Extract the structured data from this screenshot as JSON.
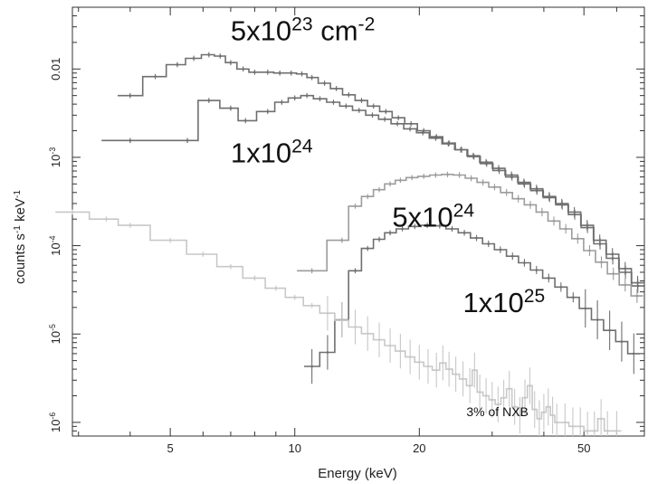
{
  "chart_data": {
    "type": "line",
    "xlabel": "Energy (keV)",
    "ylabel_parts": [
      "counts s",
      "-1",
      " keV",
      "-1"
    ],
    "xscale": "log",
    "yscale": "log",
    "xlim": [
      2.9,
      70
    ],
    "ylim": [
      7e-07,
      0.05
    ],
    "grid": false,
    "x_ticks": [
      5,
      10,
      20,
      50
    ],
    "x_tick_labels": [
      "5",
      "10",
      "20",
      "50"
    ],
    "y_ticks": [
      1e-06,
      1e-05,
      0.0001,
      0.001,
      0.01
    ],
    "y_tick_labels": [
      {
        "base": "10",
        "exp": "-6"
      },
      {
        "base": "10",
        "exp": "-5"
      },
      {
        "base": "10",
        "exp": "-4"
      },
      {
        "base": "10",
        "exp": "-3"
      },
      {
        "base": "0.01",
        "exp": ""
      }
    ],
    "annotations": [
      {
        "base": "5x10",
        "exp": "23",
        "rest": " cm",
        "rest_exp": "-2",
        "x": 7.0,
        "y": 0.0212
      },
      {
        "base": "1x10",
        "exp": "24",
        "rest": "",
        "rest_exp": "",
        "x": 7.0,
        "y": 0.00088
      },
      {
        "base": "5x10",
        "exp": "24",
        "rest": "",
        "rest_exp": "",
        "x": 17.2,
        "y": 0.000165
      },
      {
        "base": "1x10",
        "exp": "25",
        "rest": "",
        "rest_exp": "",
        "x": 25.5,
        "y": 1.78e-05
      },
      {
        "text": "3% of NXB",
        "x": 26.0,
        "y": 1.18e-06
      }
    ],
    "series": [
      {
        "color": "#6f6f6f",
        "x": [
          4.0,
          4.6,
          5.2,
          5.7,
          6.2,
          6.6,
          7.0,
          7.5,
          8.0,
          8.6,
          9.2,
          9.8,
          10.4,
          11.0,
          11.8,
          12.6,
          13.5,
          14.5,
          15.5,
          16.6,
          17.8,
          19.1,
          20.5,
          22.0,
          23.6,
          25.3,
          27.1,
          29.1,
          31.2,
          33.5,
          35.9,
          38.5,
          41.3,
          44.3,
          47.5,
          51.0,
          54.7,
          58.7,
          63.0,
          67.5
        ],
        "y": [
          0.005,
          0.0082,
          0.0112,
          0.0132,
          0.0145,
          0.014,
          0.0118,
          0.01,
          0.0092,
          0.0092,
          0.009,
          0.009,
          0.0088,
          0.008,
          0.0069,
          0.006,
          0.0051,
          0.0044,
          0.0038,
          0.0033,
          0.0028,
          0.0024,
          0.002,
          0.00171,
          0.00145,
          0.00122,
          0.00102,
          0.00085,
          0.00071,
          0.0006,
          0.0005,
          0.00042,
          0.00035,
          0.00029,
          0.000225,
          0.00016,
          0.000105,
          7.2e-05,
          5e-05,
          3.5e-05
        ]
      },
      {
        "color": "#6f6f6f",
        "x": [
          4.0,
          5.5,
          6.2,
          7.0,
          7.6,
          8.6,
          9.3,
          10.0,
          10.7,
          11.5,
          12.4,
          13.3,
          14.3,
          15.4,
          16.5,
          17.7,
          19.0,
          20.4,
          21.9,
          23.5,
          25.2,
          27.0,
          29.0,
          31.1,
          33.4,
          35.8,
          38.4,
          41.2,
          44.2,
          47.4,
          50.9,
          54.6,
          58.6,
          62.9,
          67.4
        ],
        "y": [
          0.00155,
          0.00155,
          0.0044,
          0.0036,
          0.0026,
          0.0033,
          0.0042,
          0.0047,
          0.005,
          0.0046,
          0.0042,
          0.0038,
          0.0034,
          0.003,
          0.0027,
          0.0024,
          0.0021,
          0.0019,
          0.00165,
          0.00142,
          0.00122,
          0.00104,
          0.00088,
          0.00075,
          0.00063,
          0.00052,
          0.00044,
          0.00036,
          0.0003,
          0.00024,
          0.00017,
          0.000115,
          8e-05,
          5.5e-05,
          3.8e-05
        ]
      },
      {
        "color": "#9c9c9c",
        "x": [
          11.0,
          13.0,
          14.0,
          15.0,
          16.0,
          17.0,
          18.0,
          19.2,
          20.5,
          21.9,
          23.4,
          25.0,
          26.7,
          28.5,
          30.4,
          32.5,
          34.7,
          37.1,
          39.6,
          42.3,
          45.2,
          48.3,
          51.6,
          55.1,
          58.9,
          62.9,
          67.2
        ],
        "y": [
          5.2e-05,
          0.000115,
          0.00028,
          0.00036,
          0.00043,
          0.0005,
          0.00055,
          0.00059,
          0.00061,
          0.00063,
          0.00064,
          0.00063,
          0.00058,
          0.00052,
          0.00046,
          0.0004,
          0.00034,
          0.00029,
          0.00024,
          0.00019,
          0.000155,
          0.00012,
          8.8e-05,
          6.5e-05,
          4.8e-05,
          3.6e-05,
          2.7e-05
        ]
      },
      {
        "color": "#6f6f6f",
        "x": [
          11.0,
          12.0,
          13.0,
          14.0,
          15.0,
          16.0,
          17.0,
          18.2,
          19.5,
          20.9,
          22.4,
          24.0,
          25.7,
          27.5,
          29.4,
          31.4,
          33.6,
          35.9,
          38.4,
          41.1,
          44.0,
          47.1,
          50.4,
          53.9,
          57.7,
          61.7,
          66.0
        ],
        "y": [
          4.3e-06,
          6.2e-06,
          1.45e-05,
          5.2e-05,
          9.3e-05,
          0.000118,
          0.00014,
          0.000155,
          0.000165,
          0.00017,
          0.000168,
          0.000155,
          0.00014,
          0.000122,
          0.000105,
          9e-05,
          7.6e-05,
          6.4e-05,
          5.3e-05,
          4.3e-05,
          3.4e-05,
          2.6e-05,
          1.95e-05,
          1.45e-05,
          1.1e-05,
          8.2e-06,
          6e-06
        ]
      },
      {
        "color": "#c8c8c8",
        "x": [
          2.9,
          3.5,
          4.0,
          5.0,
          6.0,
          7.0,
          8.0,
          9.0,
          10.0,
          11.0,
          12.0,
          13.0,
          14.0,
          15.0,
          16.0,
          17.0,
          18.0,
          19.0,
          20.0,
          21.0,
          22.0,
          22.8,
          23.6,
          24.5,
          25.5,
          26.5,
          27.2,
          28.0,
          29.0,
          30.0,
          31.0,
          32.0,
          33.0,
          34.0,
          35.0,
          36.0,
          37.0,
          38.0,
          39.0,
          40.0,
          41.0,
          42.0,
          43.0,
          45.0,
          47.0,
          49.0,
          51.0,
          53.0,
          55.0,
          57.0,
          60.0
        ],
        "y": [
          0.00024,
          0.0002,
          0.00017,
          0.000115,
          8e-05,
          5.8e-05,
          4.3e-05,
          3.3e-05,
          2.6e-05,
          2.1e-05,
          1.72e-05,
          1.43e-05,
          1.2e-05,
          1.01e-05,
          8.6e-06,
          7.4e-06,
          6.4e-06,
          5.5e-06,
          4.8e-06,
          4.3e-06,
          3.9e-06,
          4.7e-06,
          4e-06,
          3.5e-06,
          3.1e-06,
          2.6e-06,
          3.9e-06,
          2.2e-06,
          2e-06,
          1.8e-06,
          1.6e-06,
          1.9e-06,
          2.4e-06,
          1.5e-06,
          1.2e-06,
          1.9e-06,
          2.6e-06,
          1.4e-06,
          1.1e-06,
          1.3e-06,
          1.5e-06,
          1.2e-06,
          1e-06,
          1e-06,
          9e-07,
          9e-07,
          8e-07,
          8e-07,
          1.1e-06,
          8e-07,
          8e-07
        ]
      }
    ]
  }
}
